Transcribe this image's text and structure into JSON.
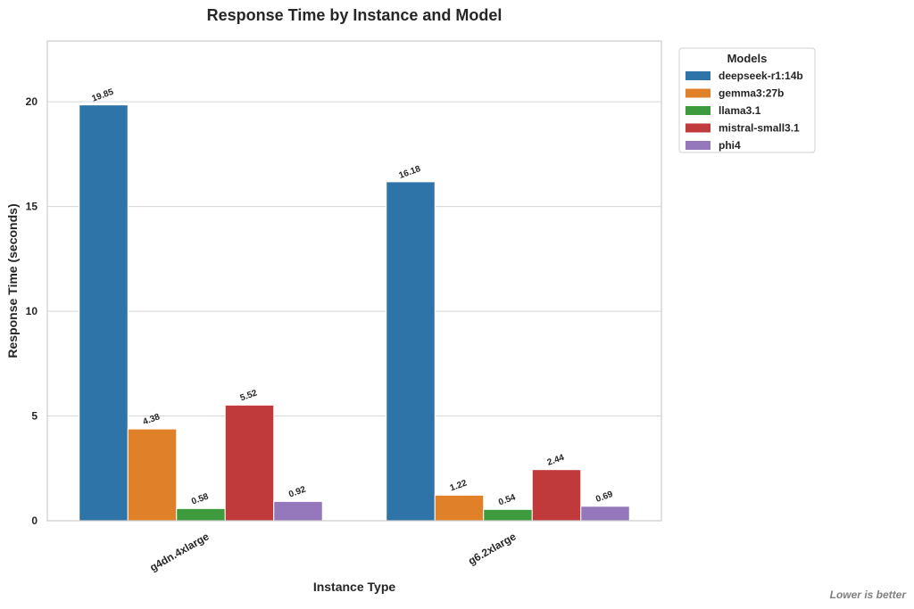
{
  "chart_data": {
    "type": "bar",
    "title": "Response Time by Instance and Model",
    "xlabel": "Instance Type",
    "ylabel": "Response Time (seconds)",
    "categories": [
      "g4dn.4xlarge",
      "g6.2xlarge"
    ],
    "series": [
      {
        "name": "deepseek-r1:14b",
        "values": [
          19.85,
          16.18
        ],
        "color": "#2e74a8"
      },
      {
        "name": "gemma3:27b",
        "values": [
          4.38,
          1.22
        ],
        "color": "#e08129"
      },
      {
        "name": "llama3.1",
        "values": [
          0.58,
          0.54
        ],
        "color": "#3d9a3d"
      },
      {
        "name": "mistral-small3.1",
        "values": [
          5.52,
          2.44
        ],
        "color": "#c0393b"
      },
      {
        "name": "phi4",
        "values": [
          0.92,
          0.69
        ],
        "color": "#9478bb"
      }
    ],
    "value_labels": [
      [
        "19.85",
        "16.18"
      ],
      [
        "4.38",
        "1.22"
      ],
      [
        "0.58",
        "0.54"
      ],
      [
        "5.52",
        "2.44"
      ],
      [
        "0.92",
        "0.69"
      ]
    ],
    "ylim": [
      0,
      22.9
    ],
    "yticks": [
      0,
      5,
      10,
      15,
      20
    ],
    "grid": true,
    "legend": {
      "title": "Models",
      "placement": "outside-upper-right"
    },
    "annotation": "Lower is better"
  }
}
